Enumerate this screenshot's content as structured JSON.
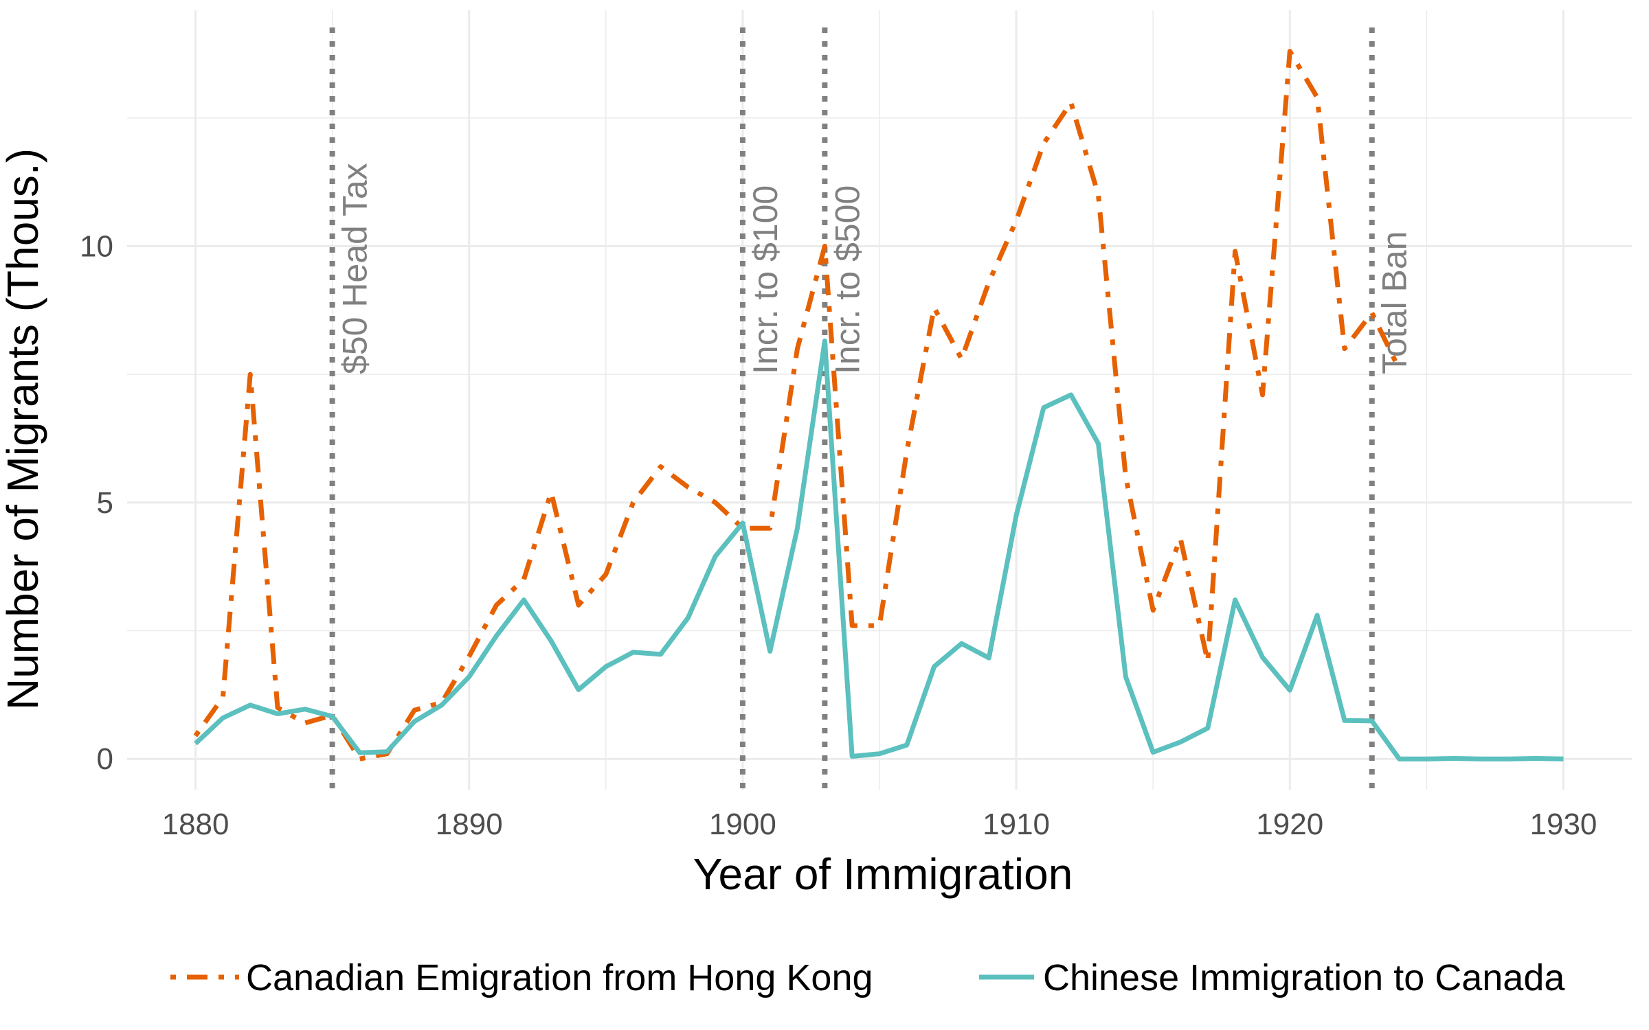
{
  "chart_data": {
    "type": "line",
    "title": "",
    "xlabel": "Year of Immigration",
    "ylabel": "Number of Migrants (Thous.)",
    "xlim": [
      1877.5,
      1932.5
    ],
    "ylim": [
      -0.6,
      14.6
    ],
    "xticks": [
      1880,
      1890,
      1900,
      1910,
      1920,
      1930
    ],
    "yticks": [
      0,
      5,
      10
    ],
    "grid": true,
    "legend_position": "bottom",
    "colors": {
      "canadian_emigration": "#E66101",
      "chinese_immigration": "#5BC0BE",
      "policy_line": "#808080",
      "grid": "#EBEBEB"
    },
    "series": [
      {
        "name": "Canadian Emigration from Hong Kong",
        "style": "dashdot",
        "x": [
          1880,
          1881,
          1882,
          1883,
          1884,
          1885,
          1886,
          1887,
          1888,
          1889,
          1890,
          1891,
          1892,
          1893,
          1894,
          1895,
          1896,
          1897,
          1898,
          1899,
          1900,
          1901,
          1902,
          1903,
          1904,
          1905,
          1906,
          1907,
          1908,
          1909,
          1910,
          1911,
          1912,
          1913,
          1914,
          1915,
          1916,
          1917,
          1918,
          1919,
          1920,
          1921,
          1922,
          1923,
          1924
        ],
        "y": [
          0.45,
          1.2,
          7.5,
          1.0,
          0.7,
          0.85,
          0.0,
          0.1,
          0.95,
          1.1,
          2.0,
          3.0,
          3.5,
          5.2,
          3.0,
          3.6,
          5.0,
          5.7,
          5.3,
          5.0,
          4.5,
          4.5,
          8.0,
          10.0,
          2.6,
          2.6,
          6.0,
          8.8,
          7.8,
          9.3,
          10.5,
          12.0,
          12.8,
          11.0,
          5.5,
          2.9,
          4.3,
          1.9,
          9.9,
          7.1,
          13.8,
          12.9,
          8.0,
          8.7,
          7.6
        ]
      },
      {
        "name": "Chinese Immigration to Canada",
        "style": "solid",
        "x": [
          1880,
          1881,
          1882,
          1883,
          1884,
          1885,
          1886,
          1887,
          1888,
          1889,
          1890,
          1891,
          1892,
          1893,
          1894,
          1895,
          1896,
          1897,
          1898,
          1899,
          1900,
          1901,
          1902,
          1903,
          1904,
          1905,
          1906,
          1907,
          1908,
          1909,
          1910,
          1911,
          1912,
          1913,
          1914,
          1915,
          1916,
          1917,
          1918,
          1919,
          1920,
          1921,
          1922,
          1923,
          1924,
          1925,
          1926,
          1927,
          1928,
          1929,
          1930
        ],
        "y": [
          0.3,
          0.8,
          1.05,
          0.88,
          0.97,
          0.83,
          0.12,
          0.14,
          0.73,
          1.05,
          1.6,
          2.4,
          3.1,
          2.3,
          1.35,
          1.8,
          2.08,
          2.04,
          2.75,
          3.95,
          4.6,
          2.1,
          4.5,
          8.15,
          0.05,
          0.1,
          0.27,
          1.8,
          2.25,
          1.97,
          4.75,
          6.85,
          7.1,
          6.15,
          1.6,
          0.13,
          0.33,
          0.6,
          3.1,
          1.98,
          1.34,
          2.8,
          0.75,
          0.74,
          0.0,
          0.0,
          0.01,
          0.0,
          0.0,
          0.01,
          0.0
        ]
      }
    ],
    "annotations": [
      {
        "x": 1885,
        "label": "$50 Head Tax"
      },
      {
        "x": 1900,
        "label": "Incr. to $100"
      },
      {
        "x": 1903,
        "label": "Incr. to $500"
      },
      {
        "x": 1923,
        "label": "Total Ban"
      }
    ]
  }
}
